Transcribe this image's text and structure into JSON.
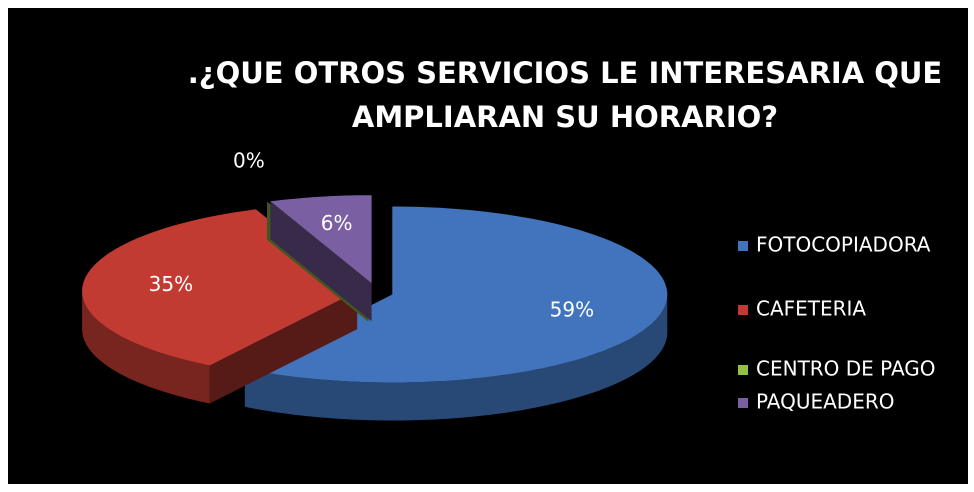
{
  "chart_data": {
    "type": "pie",
    "title": ".¿QUE OTROS SERVICIOS LE INTERESARIA QUE AMPLIARAN SU HORARIO?",
    "categories": [
      "FOTOCOPIADORA",
      "CAFETERIA",
      "CENTRO DE PAGO",
      "PAQUEADERO"
    ],
    "values": [
      59,
      35,
      0,
      6
    ],
    "value_labels": [
      "59%",
      "35%",
      "0%",
      "6%"
    ],
    "colors": [
      "#4174bd",
      "#c23b33",
      "#93c047",
      "#7b5fa3"
    ],
    "legend": "right"
  }
}
